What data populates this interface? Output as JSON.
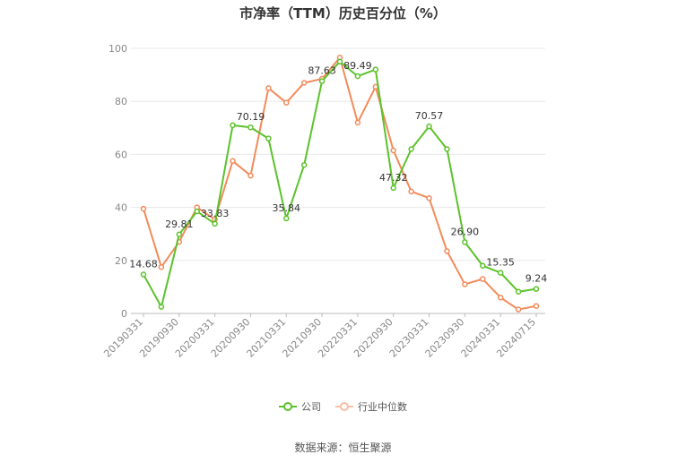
{
  "title": "市净率（TTM）历史百分位（%）",
  "source": "数据来源：恒生聚源",
  "legend": {
    "company": "公司",
    "industry": "行业中位数"
  },
  "colors": {
    "company": "#5cc22b",
    "industry": "#f28b5b"
  },
  "chart_data": {
    "type": "line",
    "title": "市净率（TTM）历史百分位（%）",
    "ylim": [
      0,
      100
    ],
    "yticks": [
      0,
      20,
      40,
      60,
      80,
      100
    ],
    "grid": true,
    "legend_position": "bottom",
    "xticks": [
      "20190331",
      "20190930",
      "20200331",
      "20200930",
      "20210331",
      "20210930",
      "20220331",
      "20220930",
      "20230331",
      "20230930",
      "20240331",
      "20240715"
    ],
    "series": [
      {
        "name": "公司",
        "values": [
          14.68,
          2.5,
          29.81,
          38.5,
          33.83,
          71.0,
          70.19,
          66.0,
          35.84,
          56.0,
          87.63,
          95.0,
          89.49,
          92.0,
          47.32,
          62.0,
          70.57,
          62.0,
          26.9,
          18.0,
          15.35,
          8.2,
          9.24
        ],
        "labels": {
          "0": "14.68",
          "2": "29.81",
          "4": "33.83",
          "6": "70.19",
          "8": "35.84",
          "10": "87.63",
          "12": "89.49",
          "14": "47.32",
          "16": "70.57",
          "18": "26.90",
          "20": "15.35",
          "22": "9.24"
        }
      },
      {
        "name": "行业中位数",
        "values": [
          39.5,
          17.5,
          27.0,
          40.0,
          35.5,
          57.5,
          52.0,
          85.0,
          79.5,
          87.0,
          88.5,
          96.5,
          72.0,
          85.5,
          61.5,
          46.0,
          43.5,
          23.5,
          11.0,
          13.0,
          6.0,
          1.5,
          2.8
        ]
      }
    ]
  }
}
